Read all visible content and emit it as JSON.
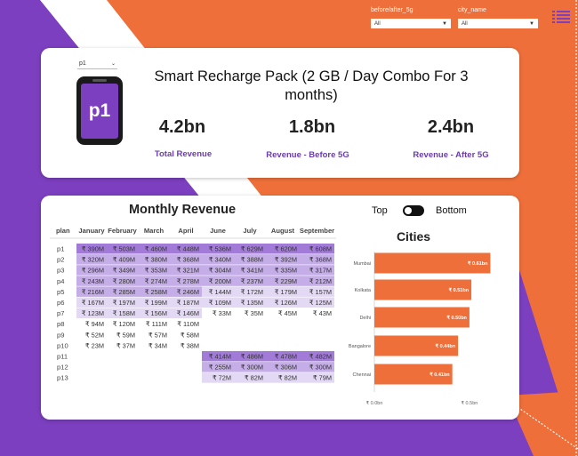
{
  "slicers": {
    "before_after": {
      "label": "before/after_5g",
      "value": "All"
    },
    "city_name": {
      "label": "city_name",
      "value": "All"
    }
  },
  "plan_slicer": {
    "value": "p1"
  },
  "plan_badge": "p1",
  "product_title": "Smart Recharge Pack (2 GB / Day Combo For 3 months)",
  "kpis": [
    {
      "value": "4.2bn",
      "label": "Total Revenue"
    },
    {
      "value": "1.8bn",
      "label": "Revenue - Before 5G"
    },
    {
      "value": "2.4bn",
      "label": "Revenue - After 5G"
    }
  ],
  "toggle": {
    "top_label": "Top",
    "bottom_label": "Bottom"
  },
  "monthly": {
    "title": "Monthly Revenue",
    "columns": [
      "plan",
      "January",
      "February",
      "March",
      "April",
      "June",
      "July",
      "August",
      "September"
    ],
    "colors": {
      "dark": "#a27bd8",
      "mid": "#c6aee8",
      "light": "#e5dbf4",
      "dark_blocked": "#a27bd8"
    },
    "rows": [
      {
        "plan": "p1",
        "values": [
          "₹ 390M",
          "₹ 503M",
          "₹ 460M",
          "₹ 448M",
          "₹ 536M",
          "₹ 629M",
          "₹ 620M",
          "₹ 608M"
        ],
        "shade": [
          2,
          2,
          2,
          2,
          2,
          2,
          2,
          2
        ]
      },
      {
        "plan": "p2",
        "values": [
          "₹ 320M",
          "₹ 409M",
          "₹ 380M",
          "₹ 368M",
          "₹ 340M",
          "₹ 388M",
          "₹ 392M",
          "₹ 368M"
        ],
        "shade": [
          1,
          1,
          1,
          1,
          1,
          1,
          1,
          1
        ]
      },
      {
        "plan": "p3",
        "values": [
          "₹ 296M",
          "₹ 349M",
          "₹ 353M",
          "₹ 321M",
          "₹ 304M",
          "₹ 341M",
          "₹ 335M",
          "₹ 317M"
        ],
        "shade": [
          1,
          1,
          1,
          1,
          1,
          1,
          1,
          1
        ]
      },
      {
        "plan": "p4",
        "values": [
          "₹ 243M",
          "₹ 280M",
          "₹ 274M",
          "₹ 278M",
          "₹ 200M",
          "₹ 237M",
          "₹ 229M",
          "₹ 212M"
        ],
        "shade": [
          1,
          1,
          1,
          1,
          1,
          1,
          1,
          1
        ]
      },
      {
        "plan": "p5",
        "values": [
          "₹ 216M",
          "₹ 285M",
          "₹ 258M",
          "₹ 246M",
          "₹ 144M",
          "₹ 172M",
          "₹ 179M",
          "₹ 157M"
        ],
        "shade": [
          1,
          1,
          1,
          1,
          0,
          0,
          0,
          0
        ]
      },
      {
        "plan": "p6",
        "values": [
          "₹ 167M",
          "₹ 197M",
          "₹ 199M",
          "₹ 187M",
          "₹ 109M",
          "₹ 135M",
          "₹ 126M",
          "₹ 125M"
        ],
        "shade": [
          0,
          0,
          0,
          0,
          0,
          0,
          0,
          0
        ]
      },
      {
        "plan": "p7",
        "values": [
          "₹ 123M",
          "₹ 158M",
          "₹ 156M",
          "₹ 146M",
          "₹ 33M",
          "₹ 35M",
          "₹ 45M",
          "₹ 43M"
        ],
        "shade": [
          0,
          0,
          0,
          0,
          -1,
          -1,
          -1,
          -1
        ]
      },
      {
        "plan": "p8",
        "values": [
          "₹ 94M",
          "₹ 120M",
          "₹ 111M",
          "₹ 110M",
          "",
          "",
          "",
          ""
        ],
        "shade": [
          -1,
          -1,
          -1,
          -1,
          -1,
          -1,
          -1,
          -1
        ]
      },
      {
        "plan": "p9",
        "values": [
          "₹ 52M",
          "₹ 59M",
          "₹ 57M",
          "₹ 58M",
          "",
          "",
          "",
          ""
        ],
        "shade": [
          -1,
          -1,
          -1,
          -1,
          -1,
          -1,
          -1,
          -1
        ]
      },
      {
        "plan": "p10",
        "values": [
          "₹ 23M",
          "₹ 37M",
          "₹ 34M",
          "₹ 38M",
          "",
          "",
          "",
          ""
        ],
        "shade": [
          -1,
          -1,
          -1,
          -1,
          -1,
          -1,
          -1,
          -1
        ]
      },
      {
        "plan": "p11",
        "values": [
          "",
          "",
          "",
          "",
          "₹ 414M",
          "₹ 486M",
          "₹ 478M",
          "₹ 482M"
        ],
        "shade": [
          -1,
          -1,
          -1,
          -1,
          2,
          2,
          2,
          2
        ]
      },
      {
        "plan": "p12",
        "values": [
          "",
          "",
          "",
          "",
          "₹ 255M",
          "₹ 300M",
          "₹ 306M",
          "₹ 300M"
        ],
        "shade": [
          -1,
          -1,
          -1,
          -1,
          1,
          1,
          1,
          1
        ]
      },
      {
        "plan": "p13",
        "values": [
          "",
          "",
          "",
          "",
          "₹ 72M",
          "₹ 82M",
          "₹ 82M",
          "₹ 79M"
        ],
        "shade": [
          -1,
          -1,
          -1,
          -1,
          0,
          0,
          0,
          0
        ]
      }
    ]
  },
  "chart_data": {
    "type": "bar",
    "orientation": "horizontal",
    "title": "Cities",
    "categories": [
      "Mumbai",
      "Kolkata",
      "Delhi",
      "Bangalore",
      "Chennai"
    ],
    "values": [
      0.61,
      0.51,
      0.5,
      0.44,
      0.41
    ],
    "data_labels": [
      "₹ 0.61bn",
      "₹ 0.51bn",
      "₹ 0.50bn",
      "₹ 0.44bn",
      "₹ 0.41bn"
    ],
    "x_ticks": [
      "₹ 0.0bn",
      "₹ 0.5bn"
    ],
    "x_tick_values": [
      0,
      0.5
    ],
    "xlim": [
      0,
      0.65
    ],
    "bar_color": "#ef6f3a",
    "grid": false,
    "legend": "none"
  }
}
